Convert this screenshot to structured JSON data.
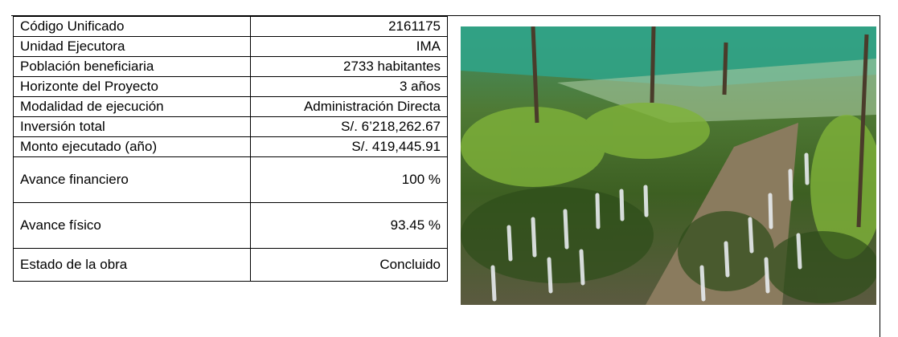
{
  "table": {
    "rows": [
      [
        "Código Unificado",
        "2161175"
      ],
      [
        "Unidad Ejecutora",
        "IMA"
      ],
      [
        "Población beneficiaria",
        "2733 habitantes"
      ],
      [
        "Horizonte del Proyecto",
        "3 años"
      ],
      [
        "Modalidad de ejecución",
        "Administración Directa"
      ],
      [
        "Inversión total",
        "S/. 6’218,262.67"
      ],
      [
        "Monto ejecutado (año)",
        "S/. 419,445.91"
      ],
      [
        "Avance financiero",
        "100 %"
      ],
      [
        "Avance físico",
        "93.45 %"
      ],
      [
        "Estado de la obra",
        "Concluido"
      ]
    ]
  }
}
